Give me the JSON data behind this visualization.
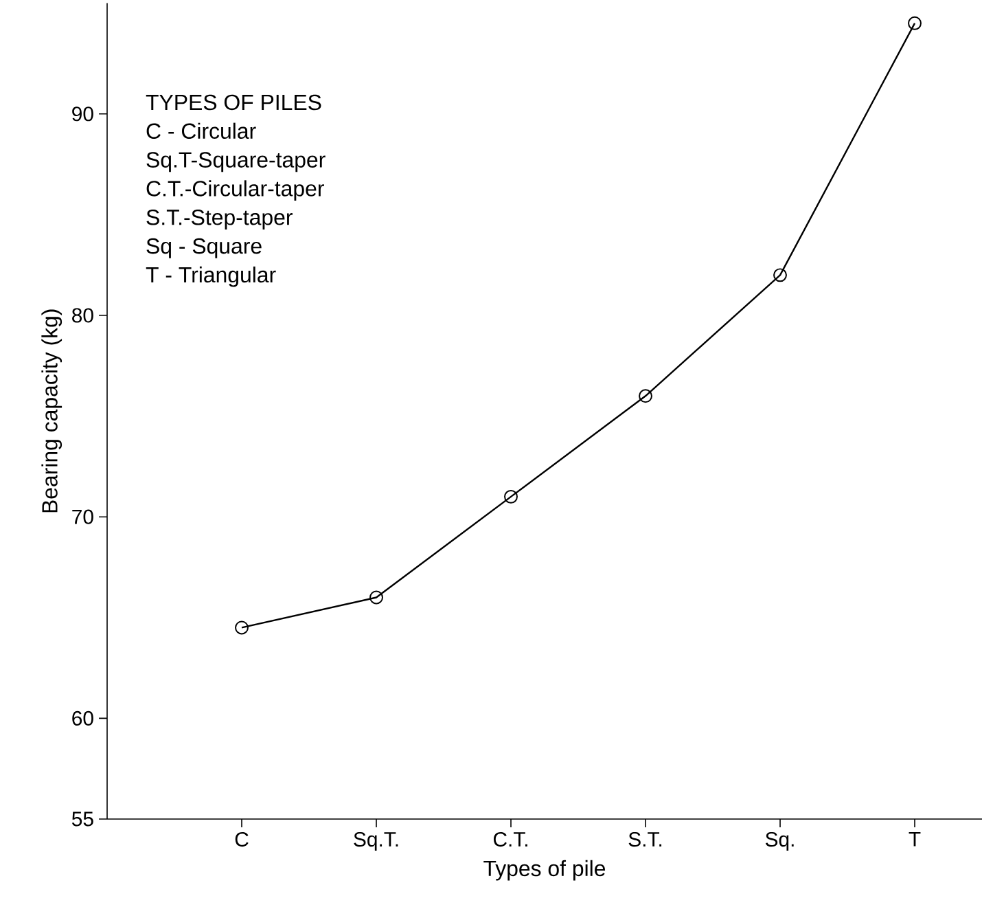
{
  "chart_data": {
    "type": "line",
    "xlabel": "Types of pile",
    "ylabel": "Bearing capacity (kg)",
    "categories": [
      "C",
      "Sq.T.",
      "C.T.",
      "S.T.",
      "Sq.",
      "T"
    ],
    "values": [
      64.5,
      66,
      71,
      76,
      82,
      94.5
    ],
    "color": "#000000",
    "marker": "circle",
    "line_style": "solid",
    "grid": false,
    "ylim": [
      55,
      95.5
    ],
    "yticks": [
      55,
      60,
      70,
      80,
      90
    ],
    "annotations": [
      "TYPES OF PILES",
      "C  - Circular",
      "Sq.T-Square-taper",
      "C.T.-Circular-taper",
      "S.T.-Step-taper",
      "Sq - Square",
      "T - Triangular"
    ]
  }
}
